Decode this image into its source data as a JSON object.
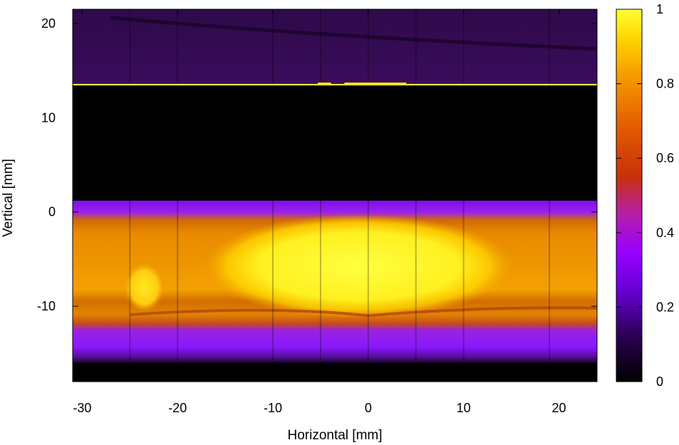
{
  "chart_data": {
    "type": "heatmap",
    "title": "",
    "xlabel": "Horizontal [mm]",
    "ylabel": "Vertical [mm]",
    "xlim": [
      -31,
      24
    ],
    "ylim": [
      -18,
      21.5
    ],
    "x_ticks": [
      -30,
      -20,
      -10,
      0,
      10,
      20
    ],
    "x_tick_labels": [
      "-30",
      "-20",
      "-10",
      "0",
      "10",
      "20"
    ],
    "y_ticks": [
      -10,
      0,
      10,
      20
    ],
    "y_tick_labels": [
      "-10",
      "0",
      "10",
      "20"
    ],
    "colorbar": {
      "range": [
        0,
        1
      ],
      "ticks": [
        0,
        0.2,
        0.4,
        0.6,
        0.8,
        1
      ],
      "tick_labels": [
        "0",
        "0.2",
        "0.4",
        "0.6",
        "0.8",
        "1"
      ],
      "colormap": [
        "#000000",
        "#3a0066",
        "#8a00ff",
        "#b21fb0",
        "#cc3300",
        "#f07800",
        "#ffc400",
        "#ffff33"
      ]
    },
    "regions": [
      {
        "name": "upper faint band",
        "y_range": [
          13.5,
          21.5
        ],
        "intensity": 0.12
      },
      {
        "name": "bright line",
        "y": 13.5,
        "intensity": 1.0
      },
      {
        "name": "dark gap",
        "y_range": [
          1.2,
          13.5
        ],
        "intensity": 0.0
      },
      {
        "name": "top edge of beam",
        "y_range": [
          -0.5,
          1.2
        ],
        "intensity": 0.3
      },
      {
        "name": "main beam",
        "y_range": [
          -11,
          -0.5
        ],
        "intensity": 0.85
      },
      {
        "name": "beam core",
        "x_range": [
          -15,
          13
        ],
        "y_range": [
          -10.5,
          -1
        ],
        "intensity": 1.0
      },
      {
        "name": "lower beam",
        "y_range": [
          -12.5,
          -10.5
        ],
        "intensity": 0.7
      },
      {
        "name": "bottom edge of beam",
        "y_range": [
          -16,
          -12.5
        ],
        "intensity": 0.3
      }
    ],
    "vertical_seams_x": [
      -25,
      -20,
      -10,
      -5,
      0,
      5,
      10,
      19
    ]
  }
}
